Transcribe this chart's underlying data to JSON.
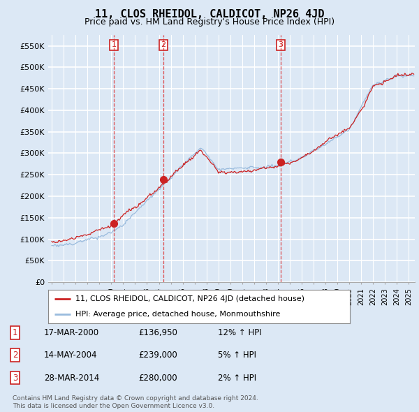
{
  "title": "11, CLOS RHEIDOL, CALDICOT, NP26 4JD",
  "subtitle": "Price paid vs. HM Land Registry's House Price Index (HPI)",
  "ylim": [
    0,
    575000
  ],
  "yticks": [
    0,
    50000,
    100000,
    150000,
    200000,
    250000,
    300000,
    350000,
    400000,
    450000,
    500000,
    550000
  ],
  "ytick_labels": [
    "£0",
    "£50K",
    "£100K",
    "£150K",
    "£200K",
    "£250K",
    "£300K",
    "£350K",
    "£400K",
    "£450K",
    "£500K",
    "£550K"
  ],
  "sale_year_nums": [
    2000.21,
    2004.37,
    2014.24
  ],
  "sale_prices": [
    136950,
    239000,
    280000
  ],
  "sale_labels": [
    "1",
    "2",
    "3"
  ],
  "sale_pcts": [
    "12% ↑ HPI",
    "5% ↑ HPI",
    "2% ↑ HPI"
  ],
  "sale_date_strs": [
    "17-MAR-2000",
    "14-MAY-2004",
    "28-MAR-2014"
  ],
  "sale_price_strs": [
    "£136,950",
    "£239,000",
    "£280,000"
  ],
  "vline_color": "#dd3333",
  "red_line_color": "#cc2222",
  "blue_line_color": "#99bbdd",
  "background_color": "#dce8f5",
  "plot_bg_color": "#dce8f5",
  "grid_color": "#ffffff",
  "legend_line1": "11, CLOS RHEIDOL, CALDICOT, NP26 4JD (detached house)",
  "legend_line2": "HPI: Average price, detached house, Monmouthshire",
  "footer1": "Contains HM Land Registry data © Crown copyright and database right 2024.",
  "footer2": "This data is licensed under the Open Government Licence v3.0.",
  "title_fontsize": 11,
  "subtitle_fontsize": 9
}
